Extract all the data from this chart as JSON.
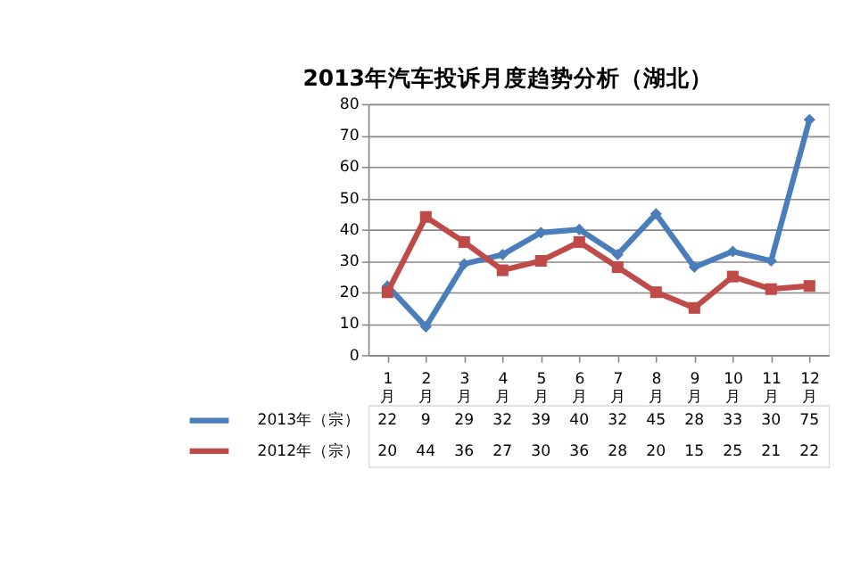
{
  "chart_data": {
    "type": "line",
    "title": "2013年汽车投诉月度趋势分析（湖北）",
    "categories": [
      "1月",
      "2月",
      "3月",
      "4月",
      "5月",
      "6月",
      "7月",
      "8月",
      "9月",
      "10月",
      "11月",
      "12月"
    ],
    "series": [
      {
        "name": "2013年（宗）",
        "color": "#4a7ebb",
        "marker": "diamond",
        "values": [
          22,
          9,
          29,
          32,
          39,
          40,
          32,
          45,
          28,
          33,
          30,
          75
        ]
      },
      {
        "name": "2012年（宗）",
        "color": "#be4b48",
        "marker": "square",
        "values": [
          20,
          44,
          36,
          27,
          30,
          36,
          28,
          20,
          15,
          25,
          21,
          22
        ]
      }
    ],
    "ylim": [
      0,
      80
    ],
    "yticks": [
      0,
      10,
      20,
      30,
      40,
      50,
      60,
      70,
      80
    ],
    "grid": "y",
    "legend": "bottom",
    "data_labels": true,
    "line_style": "solid"
  }
}
